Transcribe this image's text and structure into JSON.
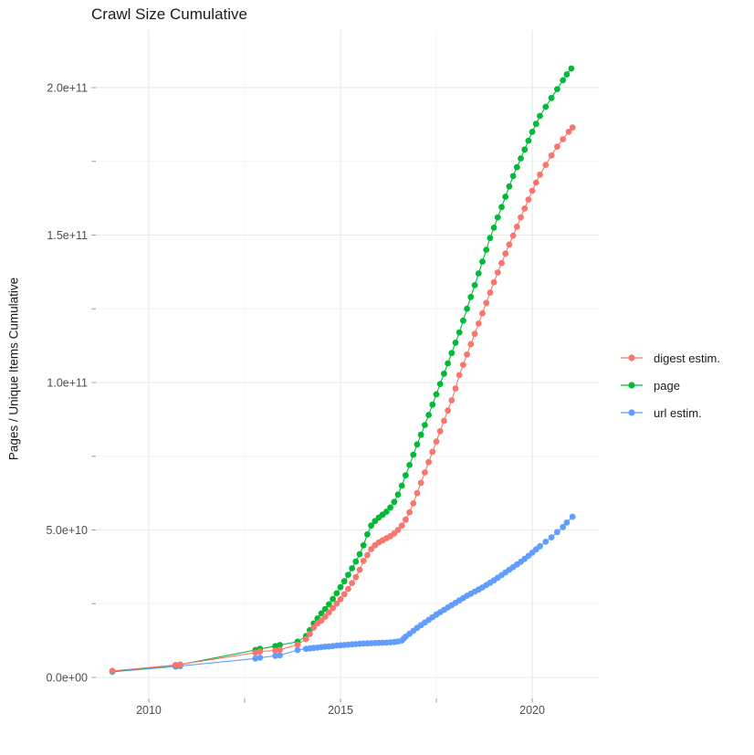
{
  "title": "Crawl Size Cumulative",
  "colors": {
    "background": "#FFFFFF",
    "grid_major": "#E8E8E8",
    "grid_minor": "#F4F4F4",
    "tick_mark": "#999999",
    "tick_label": "#4D4D4D",
    "title_text": "#1A1A1A"
  },
  "chart_data": {
    "type": "line",
    "title": "Crawl Size Cumulative",
    "xlabel": "",
    "ylabel": "Pages / Unique Items Cumulative",
    "values_unit": "1e9 (billions of pages / items)",
    "x_axis": {
      "range": [
        2008.62,
        2021.76
      ],
      "major_ticks": [
        2010,
        2015,
        2020
      ],
      "major_tick_labels": [
        "2010",
        "2015",
        "2020"
      ],
      "minor_ticks": [
        2012.5,
        2017.5
      ]
    },
    "y_axis": {
      "range_e9": [
        -7.12,
        219.5
      ],
      "major_ticks_e9": [
        0,
        50,
        100,
        150,
        200
      ],
      "major_tick_labels": [
        "0.0e+00",
        "5.0e+10",
        "1.0e+11",
        "1.5e+11",
        "2.0e+11"
      ],
      "minor_ticks_e9": [
        25,
        75,
        125,
        175
      ]
    },
    "legend": {
      "position": "right",
      "entries": [
        "digest estim.",
        "page",
        "url estim."
      ]
    },
    "series": [
      {
        "name": "digest estim.",
        "color": "#F8766D",
        "points_year_value_e9": [
          [
            2009.05,
            2.2
          ],
          [
            2010.7,
            4.2
          ],
          [
            2010.82,
            4.4
          ],
          [
            2012.78,
            8.4
          ],
          [
            2012.9,
            8.8
          ],
          [
            2013.3,
            9.1
          ],
          [
            2013.42,
            9.4
          ],
          [
            2013.88,
            11.1
          ],
          [
            2014.1,
            13.0
          ],
          [
            2014.2,
            14.7
          ],
          [
            2014.3,
            16.9
          ],
          [
            2014.4,
            18.3
          ],
          [
            2014.5,
            19.3
          ],
          [
            2014.6,
            20.6
          ],
          [
            2014.7,
            22.0
          ],
          [
            2014.8,
            23.5
          ],
          [
            2014.9,
            25.0
          ],
          [
            2015.0,
            26.5
          ],
          [
            2015.1,
            28.2
          ],
          [
            2015.2,
            30.0
          ],
          [
            2015.3,
            32.0
          ],
          [
            2015.4,
            34.0
          ],
          [
            2015.5,
            36.5
          ],
          [
            2015.6,
            39.5
          ],
          [
            2015.7,
            41.5
          ],
          [
            2015.8,
            43.5
          ],
          [
            2015.9,
            44.8
          ],
          [
            2016.0,
            45.8
          ],
          [
            2016.1,
            46.5
          ],
          [
            2016.2,
            47.2
          ],
          [
            2016.3,
            47.9
          ],
          [
            2016.4,
            48.8
          ],
          [
            2016.5,
            50.0
          ],
          [
            2016.6,
            51.5
          ],
          [
            2016.7,
            53.5
          ],
          [
            2016.8,
            56.0
          ],
          [
            2016.9,
            59.0
          ],
          [
            2017.0,
            62.5
          ],
          [
            2017.1,
            66.0
          ],
          [
            2017.2,
            69.5
          ],
          [
            2017.3,
            73.0
          ],
          [
            2017.4,
            76.5
          ],
          [
            2017.5,
            80.0
          ],
          [
            2017.6,
            83.5
          ],
          [
            2017.7,
            87.0
          ],
          [
            2017.8,
            90.5
          ],
          [
            2017.9,
            94.0
          ],
          [
            2018.0,
            98.0
          ],
          [
            2018.1,
            102.5
          ],
          [
            2018.2,
            106.0
          ],
          [
            2018.3,
            109.5
          ],
          [
            2018.4,
            113.0
          ],
          [
            2018.5,
            116.5
          ],
          [
            2018.6,
            120.0
          ],
          [
            2018.7,
            123.5
          ],
          [
            2018.8,
            127.0
          ],
          [
            2018.9,
            130.5
          ],
          [
            2019.0,
            134.0
          ],
          [
            2019.1,
            137.3
          ],
          [
            2019.2,
            140.5
          ],
          [
            2019.3,
            143.7
          ],
          [
            2019.4,
            146.8
          ],
          [
            2019.5,
            149.8
          ],
          [
            2019.6,
            152.8
          ],
          [
            2019.7,
            156.0
          ],
          [
            2019.8,
            159.0
          ],
          [
            2019.9,
            162.0
          ],
          [
            2020.0,
            165.0
          ],
          [
            2020.1,
            167.8
          ],
          [
            2020.2,
            170.5
          ],
          [
            2020.35,
            173.8
          ],
          [
            2020.5,
            177.0
          ],
          [
            2020.65,
            180.0
          ],
          [
            2020.8,
            182.5
          ],
          [
            2020.95,
            185.0
          ],
          [
            2021.05,
            186.5
          ]
        ]
      },
      {
        "name": "page",
        "color": "#00BA38",
        "points_year_value_e9": [
          [
            2009.05,
            2.05
          ],
          [
            2010.7,
            4.1
          ],
          [
            2010.82,
            4.3
          ],
          [
            2012.78,
            9.3
          ],
          [
            2012.9,
            9.7
          ],
          [
            2013.3,
            10.6
          ],
          [
            2013.42,
            11.0
          ],
          [
            2013.88,
            12.1
          ],
          [
            2014.1,
            14.0
          ],
          [
            2014.2,
            16.0
          ],
          [
            2014.3,
            18.3
          ],
          [
            2014.4,
            20.0
          ],
          [
            2014.5,
            21.7
          ],
          [
            2014.6,
            23.2
          ],
          [
            2014.7,
            24.8
          ],
          [
            2014.8,
            26.6
          ],
          [
            2014.9,
            28.5
          ],
          [
            2015.0,
            30.6
          ],
          [
            2015.1,
            32.6
          ],
          [
            2015.2,
            34.8
          ],
          [
            2015.3,
            37.0
          ],
          [
            2015.4,
            39.3
          ],
          [
            2015.5,
            41.8
          ],
          [
            2015.6,
            44.8
          ],
          [
            2015.7,
            48.5
          ],
          [
            2015.8,
            51.5
          ],
          [
            2015.9,
            53.0
          ],
          [
            2016.0,
            54.2
          ],
          [
            2016.1,
            55.2
          ],
          [
            2016.2,
            56.2
          ],
          [
            2016.3,
            57.6
          ],
          [
            2016.4,
            59.5
          ],
          [
            2016.5,
            62.0
          ],
          [
            2016.6,
            65.0
          ],
          [
            2016.7,
            68.5
          ],
          [
            2016.8,
            72.0
          ],
          [
            2016.9,
            75.5
          ],
          [
            2017.0,
            79.0
          ],
          [
            2017.1,
            82.3
          ],
          [
            2017.2,
            85.6
          ],
          [
            2017.3,
            89.0
          ],
          [
            2017.4,
            92.5
          ],
          [
            2017.5,
            96.0
          ],
          [
            2017.6,
            99.5
          ],
          [
            2017.7,
            103.0
          ],
          [
            2017.8,
            106.5
          ],
          [
            2017.9,
            110.0
          ],
          [
            2018.0,
            113.5
          ],
          [
            2018.1,
            117.0
          ],
          [
            2018.2,
            121.0
          ],
          [
            2018.3,
            125.0
          ],
          [
            2018.4,
            129.0
          ],
          [
            2018.5,
            133.0
          ],
          [
            2018.6,
            137.0
          ],
          [
            2018.7,
            141.0
          ],
          [
            2018.8,
            145.0
          ],
          [
            2018.9,
            149.0
          ],
          [
            2019.0,
            152.5
          ],
          [
            2019.1,
            156.0
          ],
          [
            2019.2,
            159.5
          ],
          [
            2019.3,
            163.0
          ],
          [
            2019.4,
            166.5
          ],
          [
            2019.5,
            170.0
          ],
          [
            2019.6,
            173.0
          ],
          [
            2019.7,
            176.0
          ],
          [
            2019.8,
            179.0
          ],
          [
            2019.9,
            182.0
          ],
          [
            2020.0,
            185.0
          ],
          [
            2020.1,
            187.7
          ],
          [
            2020.2,
            190.4
          ],
          [
            2020.35,
            193.5
          ],
          [
            2020.5,
            196.5
          ],
          [
            2020.65,
            199.5
          ],
          [
            2020.8,
            202.5
          ],
          [
            2020.9,
            204.5
          ],
          [
            2021.02,
            206.5
          ]
        ]
      },
      {
        "name": "url estim.",
        "color": "#619CFF",
        "points_year_value_e9": [
          [
            2009.05,
            1.9
          ],
          [
            2010.7,
            3.7
          ],
          [
            2010.82,
            3.85
          ],
          [
            2012.78,
            6.4
          ],
          [
            2012.9,
            6.7
          ],
          [
            2013.3,
            7.3
          ],
          [
            2013.42,
            7.5
          ],
          [
            2013.88,
            9.3
          ],
          [
            2014.1,
            9.7
          ],
          [
            2014.2,
            9.85
          ],
          [
            2014.3,
            10.0
          ],
          [
            2014.4,
            10.1
          ],
          [
            2014.5,
            10.25
          ],
          [
            2014.6,
            10.4
          ],
          [
            2014.7,
            10.5
          ],
          [
            2014.8,
            10.65
          ],
          [
            2014.9,
            10.8
          ],
          [
            2015.0,
            10.9
          ],
          [
            2015.1,
            11.0
          ],
          [
            2015.2,
            11.1
          ],
          [
            2015.3,
            11.2
          ],
          [
            2015.4,
            11.3
          ],
          [
            2015.5,
            11.4
          ],
          [
            2015.6,
            11.5
          ],
          [
            2015.7,
            11.55
          ],
          [
            2015.8,
            11.6
          ],
          [
            2015.9,
            11.65
          ],
          [
            2016.0,
            11.7
          ],
          [
            2016.1,
            11.75
          ],
          [
            2016.2,
            11.8
          ],
          [
            2016.3,
            11.9
          ],
          [
            2016.4,
            12.0
          ],
          [
            2016.5,
            12.2
          ],
          [
            2016.6,
            12.5
          ],
          [
            2016.65,
            13.2
          ],
          [
            2016.7,
            13.8
          ],
          [
            2016.8,
            14.8
          ],
          [
            2016.9,
            15.8
          ],
          [
            2017.0,
            16.8
          ],
          [
            2017.1,
            17.7
          ],
          [
            2017.2,
            18.6
          ],
          [
            2017.3,
            19.5
          ],
          [
            2017.4,
            20.4
          ],
          [
            2017.5,
            21.3
          ],
          [
            2017.6,
            22.1
          ],
          [
            2017.7,
            22.9
          ],
          [
            2017.8,
            23.7
          ],
          [
            2017.9,
            24.5
          ],
          [
            2018.0,
            25.3
          ],
          [
            2018.1,
            26.1
          ],
          [
            2018.2,
            26.9
          ],
          [
            2018.3,
            27.7
          ],
          [
            2018.4,
            28.4
          ],
          [
            2018.5,
            29.1
          ],
          [
            2018.6,
            29.8
          ],
          [
            2018.7,
            30.5
          ],
          [
            2018.8,
            31.3
          ],
          [
            2018.9,
            32.1
          ],
          [
            2019.0,
            32.9
          ],
          [
            2019.1,
            33.8
          ],
          [
            2019.2,
            34.7
          ],
          [
            2019.3,
            35.6
          ],
          [
            2019.4,
            36.5
          ],
          [
            2019.5,
            37.4
          ],
          [
            2019.6,
            38.3
          ],
          [
            2019.7,
            39.2
          ],
          [
            2019.8,
            40.2
          ],
          [
            2019.9,
            41.2
          ],
          [
            2020.0,
            42.3
          ],
          [
            2020.1,
            43.4
          ],
          [
            2020.2,
            44.5
          ],
          [
            2020.35,
            46.0
          ],
          [
            2020.5,
            47.5
          ],
          [
            2020.65,
            49.3
          ],
          [
            2020.8,
            51.0
          ],
          [
            2020.9,
            52.5
          ],
          [
            2021.05,
            54.5
          ]
        ]
      }
    ]
  }
}
